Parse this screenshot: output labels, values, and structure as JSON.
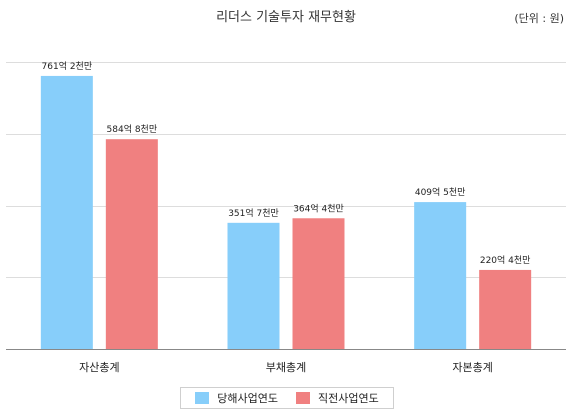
{
  "chart_data": {
    "type": "bar",
    "title": "리더스 기술투자 재무현황",
    "unit": "(단위 : 원)",
    "categories": [
      "자산총계",
      "부채총계",
      "자본총계"
    ],
    "series": [
      {
        "name": "당해사업연도",
        "color": "#87CEFA",
        "values": [
          76120000000,
          35170000000,
          40950000000
        ],
        "labels": [
          "761억 2천만",
          "351억 7천만",
          "409억 5천만"
        ]
      },
      {
        "name": "직전사업연도",
        "color": "#F08080",
        "values": [
          58480000000,
          36440000000,
          22040000000
        ],
        "labels": [
          "584억 8천만",
          "364억 4천만",
          "220억 4천만"
        ]
      }
    ],
    "ylim": [
      0,
      80000000000
    ],
    "grid": true,
    "legend_position": "bottom"
  }
}
